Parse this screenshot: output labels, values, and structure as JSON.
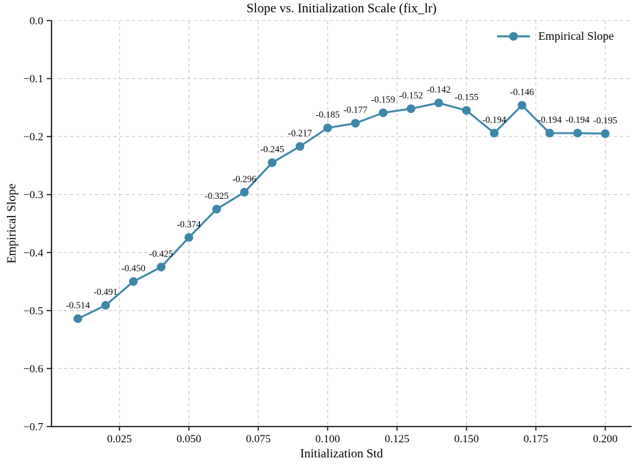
{
  "chart_data": {
    "type": "line",
    "title": "Slope vs. Initialization Scale (fix_lr)",
    "xlabel": "Initialization Std",
    "ylabel": "Empirical Slope",
    "grid": true,
    "legend_position": "upper right",
    "legend_frame": false,
    "xlim": [
      0.0005,
      0.2095
    ],
    "ylim": [
      -0.7,
      0.0
    ],
    "x_ticks": [
      0.025,
      0.05,
      0.075,
      0.1,
      0.125,
      0.15,
      0.175,
      0.2
    ],
    "x_tick_labels": [
      "0.025",
      "0.050",
      "0.075",
      "0.100",
      "0.125",
      "0.150",
      "0.175",
      "0.200"
    ],
    "y_ticks": [
      0.0,
      -0.1,
      -0.2,
      -0.3,
      -0.4,
      -0.5,
      -0.6,
      -0.7
    ],
    "y_tick_labels": [
      "0.0",
      "−0.1",
      "−0.2",
      "−0.3",
      "−0.4",
      "−0.5",
      "−0.6",
      "−0.7"
    ],
    "series": [
      {
        "name": "Empirical Slope",
        "x": [
          0.01,
          0.02,
          0.03,
          0.04,
          0.05,
          0.06,
          0.07,
          0.08,
          0.09,
          0.1,
          0.11,
          0.12,
          0.13,
          0.14,
          0.15,
          0.16,
          0.17,
          0.18,
          0.19,
          0.2
        ],
        "y": [
          -0.514,
          -0.491,
          -0.45,
          -0.425,
          -0.374,
          -0.325,
          -0.296,
          -0.245,
          -0.217,
          -0.185,
          -0.177,
          -0.159,
          -0.152,
          -0.142,
          -0.155,
          -0.194,
          -0.146,
          -0.194,
          -0.194,
          -0.195
        ],
        "point_labels": [
          "-0.514",
          "-0.491",
          "-0.450",
          "-0.425",
          "-0.374",
          "-0.325",
          "-0.296",
          "-0.245",
          "-0.217",
          "-0.185",
          "-0.177",
          "-0.159",
          "-0.152",
          "-0.142",
          "-0.155",
          "-0.194",
          "-0.146",
          "-0.194",
          "-0.194",
          "-0.195"
        ],
        "color": "#3d87a9"
      }
    ],
    "colors": {
      "line": "#3d87a9",
      "grid": "#c9c9c9",
      "spine": "#1a1a1a",
      "text": "#000000",
      "background": "#ffffff"
    }
  }
}
